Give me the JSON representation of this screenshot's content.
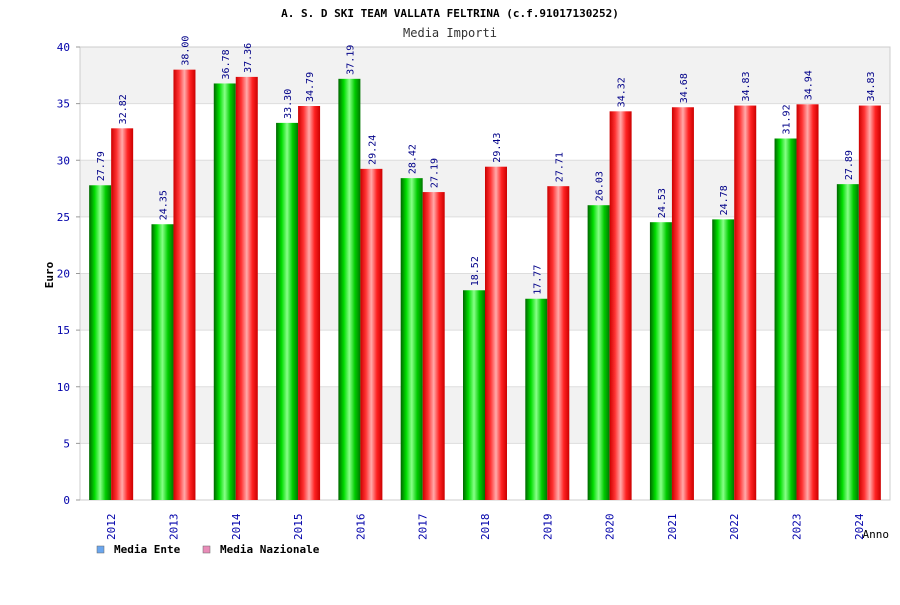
{
  "chart_data": {
    "type": "bar",
    "title": "A. S. D SKI TEAM VALLATA FELTRINA (c.f.91017130252)",
    "subtitle": "Media Importi",
    "ylabel": "Euro",
    "xlabel": "Anno",
    "ylim": [
      0,
      40
    ],
    "yticks": [
      "0",
      "5",
      "10",
      "15",
      "20",
      "25",
      "30",
      "35",
      "40"
    ],
    "categories": [
      "2012",
      "2013",
      "2014",
      "2015",
      "2016",
      "2017",
      "2018",
      "2019",
      "2020",
      "2021",
      "2022",
      "2023",
      "2024"
    ],
    "series": [
      {
        "name": "Media Ente",
        "color": "#00cc00",
        "values": [
          27.79,
          24.35,
          36.78,
          33.3,
          37.19,
          28.42,
          18.52,
          17.77,
          26.03,
          24.53,
          24.78,
          31.92,
          27.89
        ],
        "labels": [
          "27.79",
          "24.35",
          "36.78",
          "33.30",
          "37.19",
          "28.42",
          "18.52",
          "17.77",
          "26.03",
          "24.53",
          "24.78",
          "31.92",
          "27.89"
        ]
      },
      {
        "name": "Media Nazionale",
        "color": "#ff0000",
        "values": [
          32.82,
          38.0,
          37.36,
          34.79,
          29.24,
          27.19,
          29.43,
          27.71,
          34.32,
          34.68,
          34.83,
          34.94,
          34.83
        ],
        "labels": [
          "32.82",
          "38.00",
          "37.36",
          "34.79",
          "29.24",
          "27.19",
          "29.43",
          "27.71",
          "34.32",
          "34.68",
          "34.83",
          "34.94",
          "34.83"
        ]
      }
    ],
    "legend": {
      "position": "bottom-left",
      "items": [
        {
          "label": "Media Ente",
          "color": "#6aa6ee"
        },
        {
          "label": "Media Nazionale",
          "color": "#e98cb8"
        }
      ]
    },
    "grid": true
  }
}
